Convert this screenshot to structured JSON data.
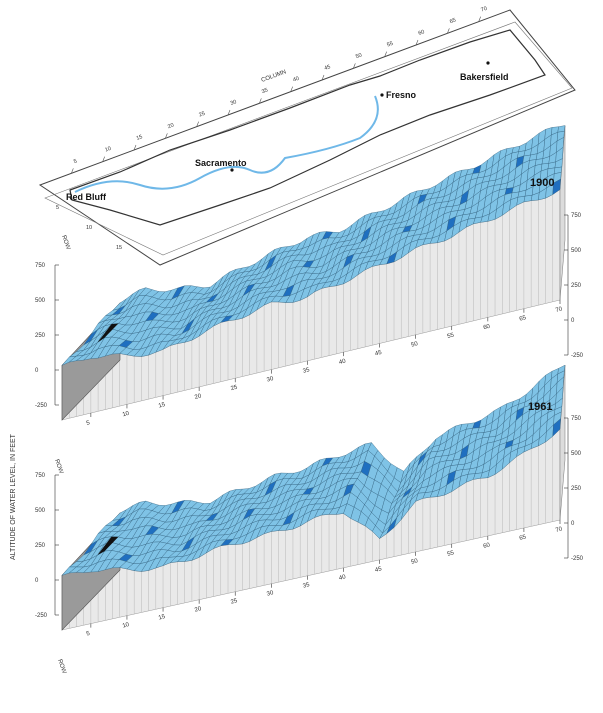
{
  "chart_data": [
    {
      "type": "map",
      "column_axis_label": "COLUMN",
      "row_axis_label": "ROW",
      "column_ticks": [
        "5",
        "10",
        "15",
        "20",
        "25",
        "30",
        "35",
        "40",
        "45",
        "50",
        "55",
        "60",
        "65",
        "70"
      ],
      "row_ticks": [
        "5",
        "10",
        "15"
      ],
      "places": [
        {
          "name": "Red Bluff",
          "marker": false
        },
        {
          "name": "Sacramento",
          "marker": true
        },
        {
          "name": "Fresno",
          "marker": true
        },
        {
          "name": "Bakersfield",
          "marker": true
        }
      ]
    },
    {
      "type": "surface",
      "title": "1900",
      "zlabel": "ALTITUDE OF WATER LEVEL, IN FEET",
      "z_ticks": [
        "750",
        "500",
        "250",
        "0",
        "-250"
      ],
      "zlim": [
        -250,
        750
      ],
      "column_ticks": [
        "5",
        "10",
        "15",
        "20",
        "25",
        "30",
        "35",
        "40",
        "45",
        "50",
        "55",
        "60",
        "65",
        "70"
      ],
      "row_label": "ROW",
      "row_ticks": [
        "5",
        "10",
        "15"
      ],
      "profile": [
        {
          "column": 1,
          "level": 150
        },
        {
          "column": 5,
          "level": 180
        },
        {
          "column": 10,
          "level": 120
        },
        {
          "column": 15,
          "level": 90
        },
        {
          "column": 20,
          "level": 150
        },
        {
          "column": 25,
          "level": 200
        },
        {
          "column": 30,
          "level": 240
        },
        {
          "column": 35,
          "level": 230
        },
        {
          "column": 40,
          "level": 280
        },
        {
          "column": 45,
          "level": 330
        },
        {
          "column": 50,
          "level": 380
        },
        {
          "column": 55,
          "level": 420
        },
        {
          "column": 60,
          "level": 470
        },
        {
          "column": 65,
          "level": 520
        },
        {
          "column": 70,
          "level": 560
        }
      ]
    },
    {
      "type": "surface",
      "title": "1961",
      "zlabel": "ALTITUDE OF WATER LEVEL, IN FEET",
      "z_ticks": [
        "750",
        "500",
        "250",
        "0",
        "-250"
      ],
      "zlim": [
        -250,
        750
      ],
      "column_ticks": [
        "5",
        "10",
        "15",
        "20",
        "25",
        "30",
        "35",
        "40",
        "45",
        "50",
        "55",
        "60",
        "65",
        "70"
      ],
      "row_label": "ROW",
      "row_ticks": [
        "5",
        "10",
        "15"
      ],
      "profile": [
        {
          "column": 1,
          "level": 150
        },
        {
          "column": 5,
          "level": 160
        },
        {
          "column": 10,
          "level": 100
        },
        {
          "column": 15,
          "level": 60
        },
        {
          "column": 20,
          "level": 90
        },
        {
          "column": 25,
          "level": 120
        },
        {
          "column": 30,
          "level": 130
        },
        {
          "column": 35,
          "level": 160
        },
        {
          "column": 40,
          "level": 180
        },
        {
          "column": 45,
          "level": -80
        },
        {
          "column": 50,
          "level": 120
        },
        {
          "column": 55,
          "level": 160
        },
        {
          "column": 60,
          "level": 200
        },
        {
          "column": 65,
          "level": 300
        },
        {
          "column": 70,
          "level": 420
        }
      ]
    }
  ],
  "colors": {
    "surface": "#7fc3e6",
    "surface_dark": "#1f6fc0",
    "mesh": "#2b5a78",
    "walls": "#e9e9e9",
    "ink": "#222222"
  }
}
